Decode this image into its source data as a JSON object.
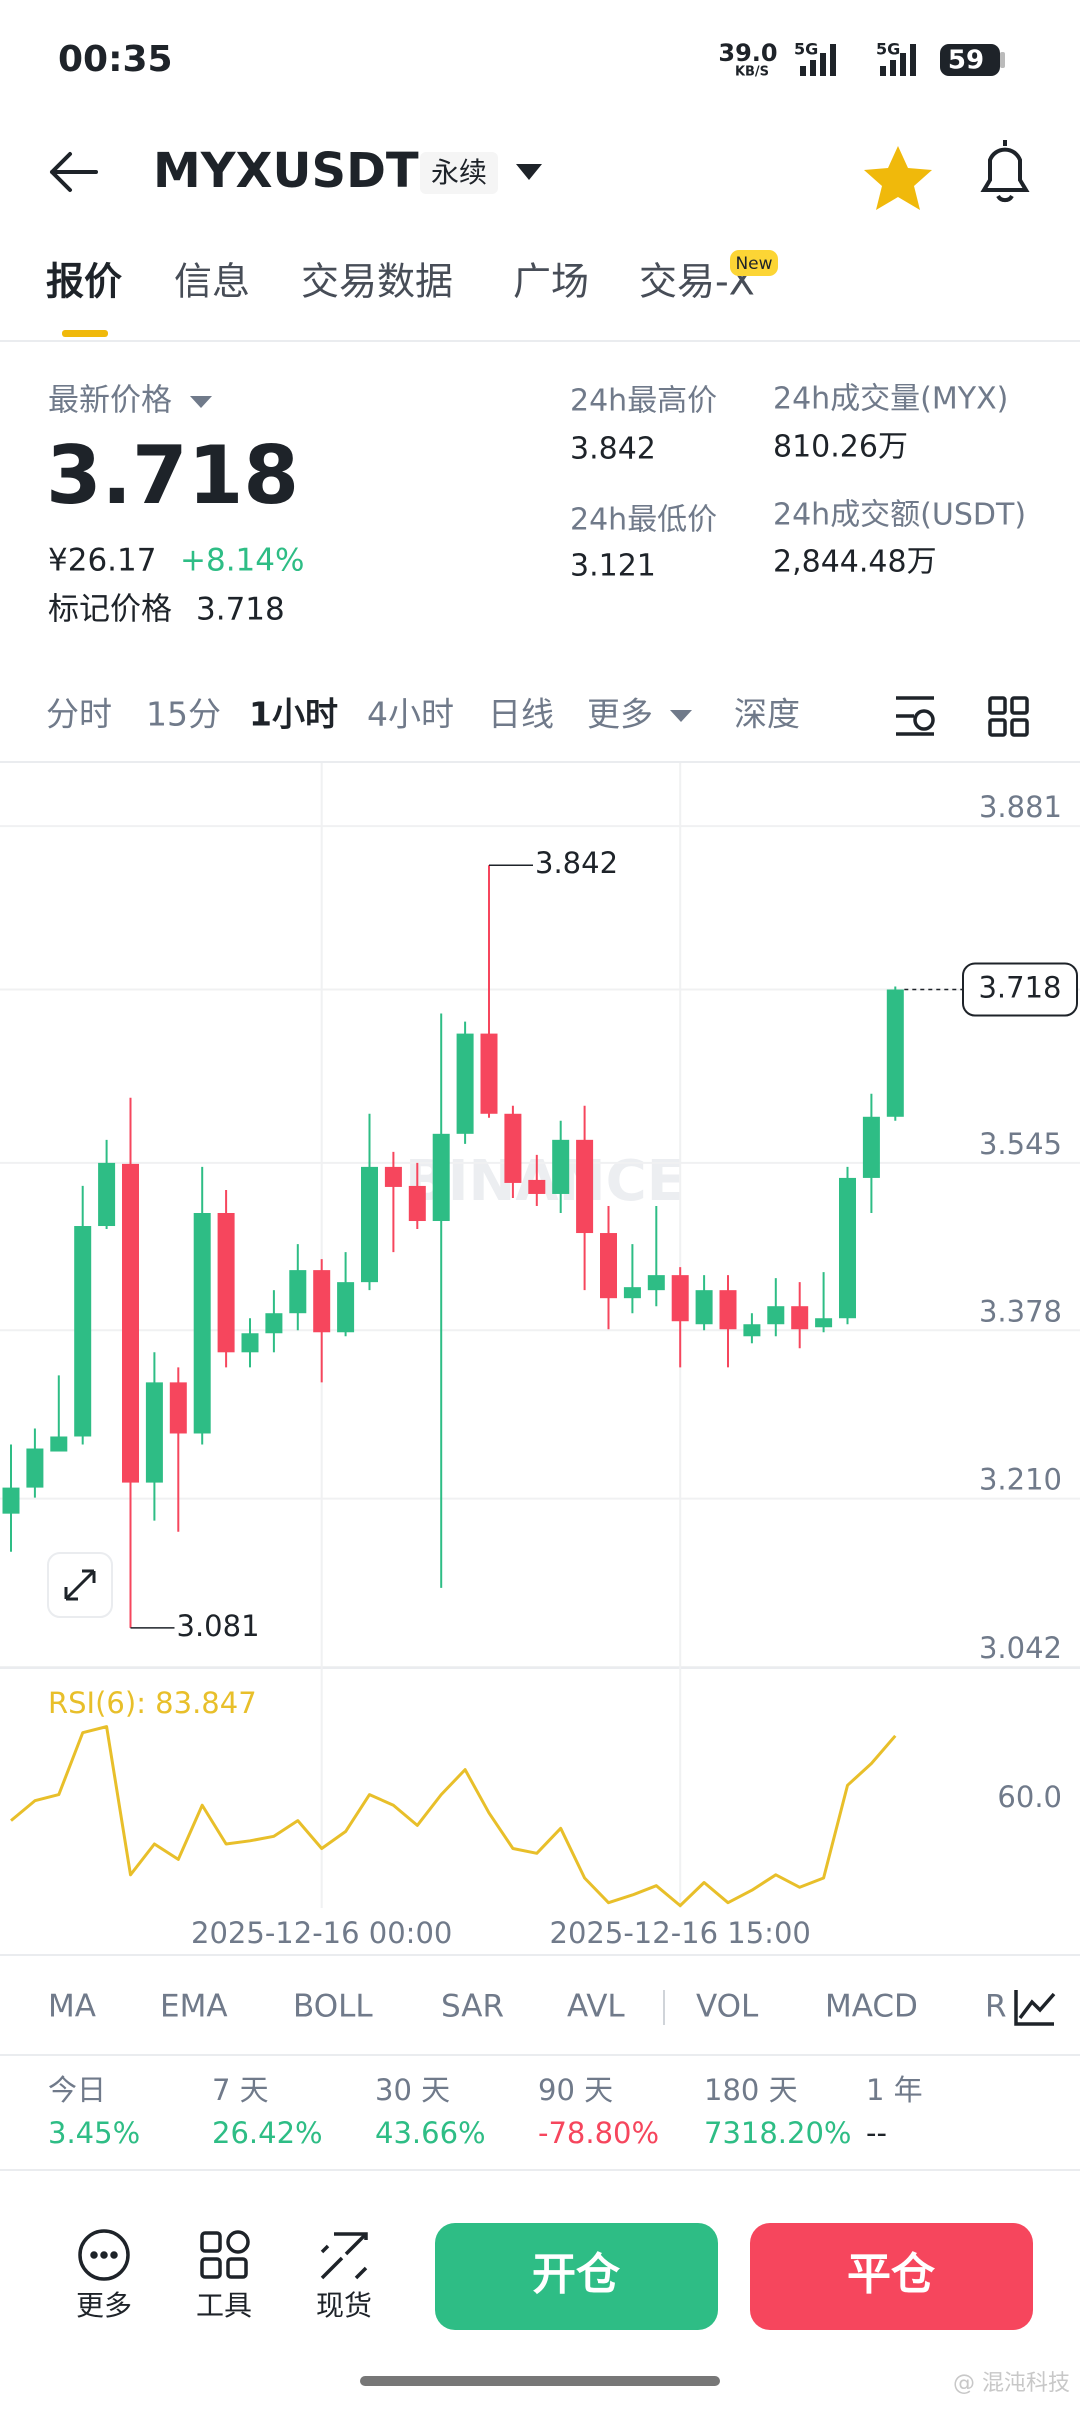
{
  "status": {
    "time": "00:35",
    "speed": "39.0",
    "speed_unit": "KB/S",
    "net1": "5G",
    "net2": "5G",
    "battery": "59"
  },
  "header": {
    "symbol": "MYXUSDT",
    "tag": "永续"
  },
  "tabs": {
    "items": [
      "报价",
      "信息",
      "交易数据",
      "广场",
      "交易-X"
    ],
    "badge": "New"
  },
  "stats": {
    "last_price_label": "最新价格",
    "last_price": "3.718",
    "cny": "¥26.17",
    "change": "+8.14%",
    "mark_label": "标记价格",
    "mark_price": "3.718",
    "high_label": "24h最高价",
    "high": "3.842",
    "low_label": "24h最低价",
    "low": "3.121",
    "vol_label": "24h成交量(MYX)",
    "vol": "810.26万",
    "amt_label": "24h成交额(USDT)",
    "amt": "2,844.48万"
  },
  "intervals": [
    "分时",
    "15分",
    "1小时",
    "4小时",
    "日线",
    "更多",
    "深度"
  ],
  "chart_data": {
    "type": "candlestick",
    "watermark": "BINANCE",
    "categories": [
      null,
      null,
      null,
      null,
      null,
      null,
      null,
      null,
      null,
      null,
      null,
      null,
      null,
      "2025-12-16 00:00",
      null,
      null,
      null,
      null,
      null,
      null,
      null,
      null,
      null,
      null,
      null,
      null,
      null,
      null,
      "2025-12-16 15:00",
      null,
      null,
      null,
      null,
      null,
      null,
      null,
      null,
      null
    ],
    "open": [
      3.195,
      3.221,
      3.257,
      3.272,
      3.482,
      3.544,
      3.226,
      3.326,
      3.275,
      3.495,
      3.356,
      3.375,
      3.395,
      3.438,
      3.376,
      3.426,
      3.541,
      3.522,
      3.487,
      3.574,
      3.674,
      3.594,
      3.528,
      3.514,
      3.568,
      3.475,
      3.41,
      3.418,
      3.433,
      3.384,
      3.418,
      3.372,
      3.384,
      3.402,
      3.381,
      3.39,
      3.53,
      3.591
    ],
    "high": [
      3.264,
      3.28,
      3.333,
      3.522,
      3.568,
      3.61,
      3.356,
      3.341,
      3.541,
      3.518,
      3.39,
      3.418,
      3.464,
      3.449,
      3.456,
      3.594,
      3.556,
      3.545,
      3.694,
      3.686,
      3.842,
      3.602,
      3.553,
      3.587,
      3.602,
      3.502,
      3.464,
      3.502,
      3.441,
      3.433,
      3.433,
      3.395,
      3.43,
      3.426,
      3.436,
      3.541,
      3.614,
      3.721
    ],
    "low": [
      3.157,
      3.211,
      3.257,
      3.264,
      3.479,
      3.081,
      3.188,
      3.177,
      3.264,
      3.341,
      3.341,
      3.356,
      3.378,
      3.326,
      3.372,
      3.418,
      3.456,
      3.479,
      3.121,
      3.564,
      3.59,
      3.51,
      3.502,
      3.495,
      3.418,
      3.379,
      3.395,
      3.402,
      3.341,
      3.378,
      3.341,
      3.365,
      3.372,
      3.36,
      3.376,
      3.384,
      3.495,
      3.587
    ],
    "close": [
      3.221,
      3.26,
      3.272,
      3.482,
      3.545,
      3.226,
      3.326,
      3.275,
      3.495,
      3.356,
      3.375,
      3.395,
      3.438,
      3.376,
      3.426,
      3.541,
      3.521,
      3.487,
      3.574,
      3.674,
      3.594,
      3.525,
      3.514,
      3.568,
      3.475,
      3.41,
      3.421,
      3.433,
      3.387,
      3.418,
      3.379,
      3.384,
      3.402,
      3.379,
      3.39,
      3.53,
      3.591,
      3.718
    ],
    "up_color": "#2ebd85",
    "down_color": "#f6465d",
    "ylim": [
      3.042,
      3.944
    ],
    "yticks": [
      3.042,
      {
        "value": 3.21,
        "label": "3.210"
      },
      3.378,
      3.545,
      3.881
    ],
    "last_price": 3.718,
    "grid": true,
    "rsi": {
      "label": "RSI(6): 83.847",
      "color": "#e8bf2a",
      "values": [
        51.9,
        59.4,
        61.7,
        85.0,
        87.3,
        31.5,
        43.1,
        37.3,
        57.7,
        43.1,
        44.3,
        46.0,
        51.9,
        41.4,
        47.8,
        61.7,
        57.7,
        50.1,
        61.7,
        71.1,
        54.8,
        41.4,
        39.6,
        49.0,
        30.3,
        21.0,
        23.9,
        27.4,
        19.9,
        28.6,
        21.0,
        25.7,
        31.5,
        26.8,
        30.3,
        65.2,
        73.4,
        83.847
      ],
      "ylim": [
        19,
        109
      ],
      "yticks": [
        {
          "value": 60,
          "label": "60.0"
        }
      ]
    }
  },
  "indicators": [
    "MA",
    "EMA",
    "BOLL",
    "SAR",
    "AVL",
    "VOL",
    "MACD",
    "R"
  ],
  "performance": {
    "labels": [
      "今日",
      "7 天",
      "30 天",
      "90 天",
      "180 天",
      "1 年"
    ],
    "values": [
      "3.45%",
      "26.42%",
      "43.66%",
      "-78.80%",
      "7318.20%",
      "--"
    ]
  },
  "actions": {
    "tools": [
      "更多",
      "工具",
      "现货"
    ],
    "open": "开仓",
    "close": "平仓"
  },
  "watermark": "@ 混沌科技"
}
